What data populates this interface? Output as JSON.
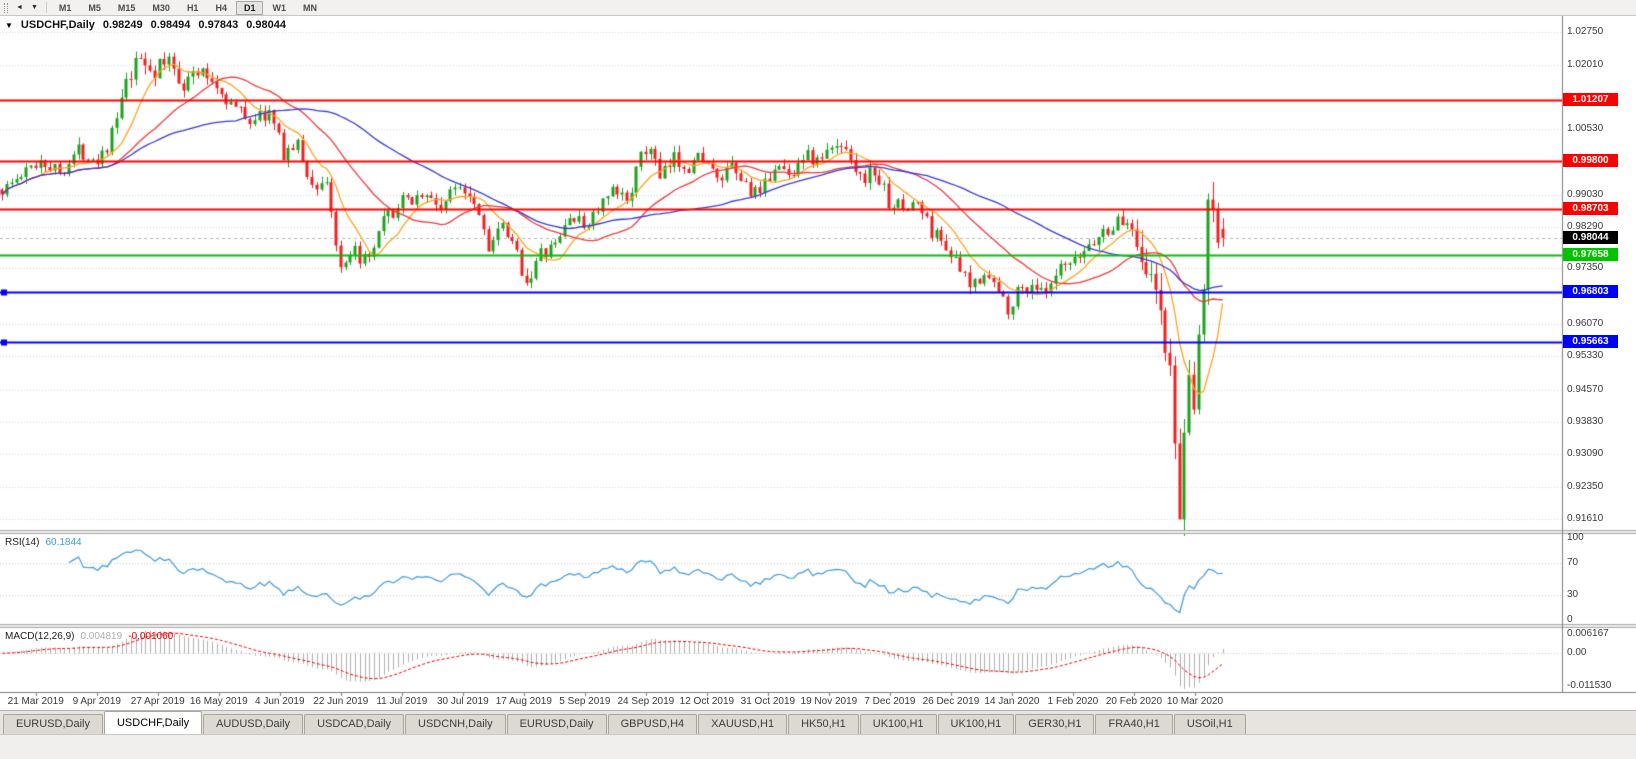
{
  "toolbar": {
    "icons": [
      {
        "name": "scroll-back",
        "glyph": "◄"
      },
      {
        "name": "dropdown",
        "glyph": "▼"
      }
    ],
    "timeframes": [
      "M1",
      "M5",
      "M15",
      "M30",
      "H1",
      "H4",
      "D1",
      "W1",
      "MN"
    ],
    "active_timeframe": "D1"
  },
  "chart": {
    "one_click_glyph": "▼",
    "symbol_label": "USDCHF,Daily",
    "ohlc": {
      "open": "0.98249",
      "high": "0.98494",
      "low": "0.97843",
      "close": "0.98044"
    },
    "axis_labels": [
      "1.02750",
      "1.02010",
      "1.00530",
      "0.99030",
      "0.98290",
      "0.97350",
      "0.96070",
      "0.95330",
      "0.94570",
      "0.93830",
      "0.93090",
      "0.92350",
      "0.91610"
    ],
    "current_price": {
      "label": "0.98044",
      "price": 0.98044,
      "color": "#000000"
    }
  },
  "rsi": {
    "name": "RSI(14)",
    "value": "60.1844",
    "axis": [
      "100",
      "70",
      "30",
      "0"
    ]
  },
  "macd": {
    "name": "MACD(12,26,9)",
    "main_value": "0.004819",
    "signal_value": "-0.001060",
    "axis": [
      "0.006167",
      "0.00",
      "-0.011530"
    ]
  },
  "tabs": {
    "items": [
      "EURUSD,Daily",
      "USDCHF,Daily",
      "AUDUSD,Daily",
      "USDCAD,Daily",
      "USDCNH,Daily",
      "EURUSD,Daily",
      "GBPUSD,H4",
      "XAUUSD,H1",
      "HK50,H1",
      "UK100,H1",
      "UK100,H1",
      "GER30,H1",
      "FRA40,H1",
      "USOil,H1"
    ],
    "active_index": 1
  },
  "chart_data": {
    "type": "candlestick",
    "symbol": "USDCHF",
    "timeframe": "Daily",
    "bars": 257,
    "seed": 1337,
    "ylim": [
      0.9136,
      1.0312
    ],
    "colors": {
      "up": "#1FA11F",
      "down": "#EE2020",
      "grid": "#D6D6D6",
      "bid_line": "#B9B9B9"
    },
    "price_path": [
      [
        0,
        0.9915
      ],
      [
        4,
        0.9945
      ],
      [
        8,
        0.9985
      ],
      [
        12,
        0.9955
      ],
      [
        16,
        1.0005
      ],
      [
        20,
        0.9985
      ],
      [
        23,
        1.004
      ],
      [
        26,
        1.015
      ],
      [
        29,
        1.0215
      ],
      [
        32,
        1.0185
      ],
      [
        35,
        1.021
      ],
      [
        38,
        1.016
      ],
      [
        41,
        1.0185
      ],
      [
        44,
        1.0165
      ],
      [
        48,
        1.011
      ],
      [
        52,
        1.0075
      ],
      [
        56,
        1.009
      ],
      [
        59,
        1.0
      ],
      [
        62,
        1.0015
      ],
      [
        65,
        0.992
      ],
      [
        68,
        0.9935
      ],
      [
        71,
        0.972
      ],
      [
        74,
        0.977
      ],
      [
        77,
        0.9745
      ],
      [
        80,
        0.984
      ],
      [
        84,
        0.9885
      ],
      [
        88,
        0.9905
      ],
      [
        92,
        0.9875
      ],
      [
        96,
        0.993
      ],
      [
        99,
        0.9895
      ],
      [
        102,
        0.979
      ],
      [
        105,
        0.9825
      ],
      [
        108,
        0.9765
      ],
      [
        110,
        0.9705
      ],
      [
        113,
        0.9765
      ],
      [
        116,
        0.9785
      ],
      [
        119,
        0.9855
      ],
      [
        122,
        0.983
      ],
      [
        125,
        0.987
      ],
      [
        128,
        0.9905
      ],
      [
        131,
        0.9895
      ],
      [
        134,
        0.9985
      ],
      [
        136,
        1.0015
      ],
      [
        138,
        0.9935
      ],
      [
        141,
        0.9985
      ],
      [
        144,
        0.997
      ],
      [
        147,
        0.9995
      ],
      [
        150,
        0.993
      ],
      [
        153,
        0.996
      ],
      [
        156,
        0.9925
      ],
      [
        159,
        0.9895
      ],
      [
        162,
        0.9975
      ],
      [
        165,
        0.9945
      ],
      [
        168,
        0.9995
      ],
      [
        171,
        0.998
      ],
      [
        174,
        1.0005
      ],
      [
        177,
        1.002
      ],
      [
        180,
        0.994
      ],
      [
        183,
        0.9955
      ],
      [
        186,
        0.989
      ],
      [
        189,
        0.987
      ],
      [
        192,
        0.9885
      ],
      [
        195,
        0.982
      ],
      [
        198,
        0.979
      ],
      [
        200,
        0.9745
      ],
      [
        203,
        0.969
      ],
      [
        206,
        0.973
      ],
      [
        209,
        0.968
      ],
      [
        211,
        0.9645
      ],
      [
        213,
        0.968
      ],
      [
        216,
        0.97
      ],
      [
        219,
        0.967
      ],
      [
        222,
        0.973
      ],
      [
        225,
        0.9745
      ],
      [
        228,
        0.979
      ],
      [
        231,
        0.9815
      ],
      [
        234,
        0.984
      ],
      [
        237,
        0.9835
      ],
      [
        239,
        0.978
      ],
      [
        241,
        0.97
      ],
      [
        243,
        0.964
      ],
      [
        244,
        0.956
      ],
      [
        245,
        0.948
      ],
      [
        246,
        0.933
      ],
      [
        247,
        0.919
      ],
      [
        248,
        0.932
      ],
      [
        249,
        0.945
      ],
      [
        250,
        0.942
      ],
      [
        251,
        0.956
      ],
      [
        252,
        0.97
      ],
      [
        253,
        0.989
      ],
      [
        254,
        0.986
      ],
      [
        255,
        0.98
      ],
      [
        256,
        0.9804
      ]
    ],
    "forced_candles": [
      {
        "i": 29,
        "h": 1.0226
      },
      {
        "i": 247,
        "l": 0.9161
      },
      {
        "i": 253,
        "h": 0.9906,
        "c": 0.9892
      },
      {
        "i": 256,
        "o": 0.98249,
        "h": 0.98494,
        "l": 0.97843,
        "c": 0.98044
      }
    ],
    "moving_averages": [
      {
        "period": 9,
        "color": "#FFA321"
      },
      {
        "period": 24,
        "color": "#F03A3A"
      },
      {
        "period": 50,
        "color": "#3A3AD6"
      }
    ],
    "indicators": {
      "rsi": {
        "period": 14,
        "color": "#3E9BDE",
        "levels": [
          70,
          30
        ]
      },
      "macd": {
        "fast": 12,
        "slow": 26,
        "signal": 9,
        "histogram_color": "#AFAFAF",
        "signal_color": "#F00000"
      }
    },
    "levels": [
      {
        "label": "1.01207",
        "price": 1.01207,
        "color": "#FF0000",
        "kind": "resistance"
      },
      {
        "label": "0.99800",
        "price": 0.998,
        "color": "#FF0000",
        "kind": "resistance"
      },
      {
        "label": "0.98703",
        "price": 0.98703,
        "color": "#FF0000",
        "kind": "resistance"
      },
      {
        "label": "0.97658",
        "price": 0.97658,
        "color": "#00C400",
        "kind": "support"
      },
      {
        "label": "0.96803",
        "price": 0.96803,
        "color": "#0000FF",
        "kind": "support",
        "handles": true
      },
      {
        "label": "0.95663",
        "price": 0.95663,
        "color": "#0000FF",
        "kind": "support",
        "handles": true
      }
    ],
    "dates": [
      "21 Mar 2019",
      "9 Apr 2019",
      "27 Apr 2019",
      "16 May 2019",
      "4 Jun 2019",
      "22 Jun 2019",
      "11 Jul 2019",
      "30 Jul 2019",
      "17 Aug 2019",
      "5 Sep 2019",
      "24 Sep 2019",
      "12 Oct 2019",
      "31 Oct 2019",
      "19 Nov 2019",
      "7 Dec 2019",
      "26 Dec 2019",
      "14 Jan 2020",
      "1 Feb 2020",
      "20 Feb 2020",
      "10 Mar 2020"
    ]
  }
}
